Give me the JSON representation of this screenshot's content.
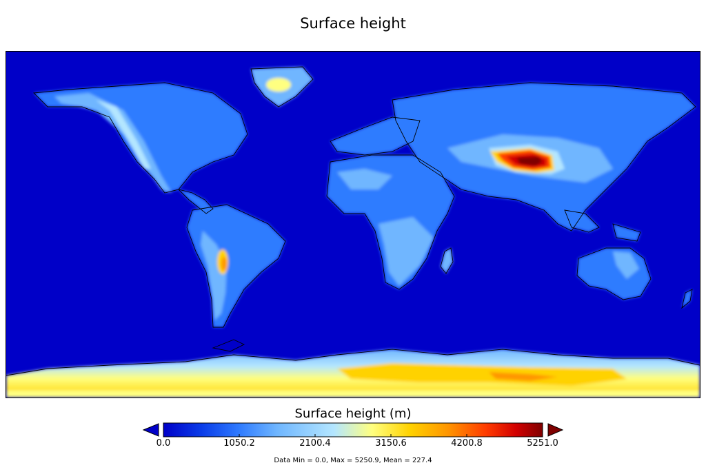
{
  "title": "Surface height",
  "colorbar": {
    "label": "Surface height (m)",
    "ticks": [
      "0.0",
      "1050.2",
      "2100.4",
      "3150.6",
      "4200.8",
      "5251.0"
    ],
    "min": 0.0,
    "max": 5251.0,
    "under_color": "#0000c8",
    "over_color": "#7f0000",
    "colors": [
      "#0000c8",
      "#0a3ce8",
      "#2f7bff",
      "#6fb6ff",
      "#b4e6ff",
      "#ffff80",
      "#ffd200",
      "#ff9600",
      "#ff3c00",
      "#d20000",
      "#7f0000"
    ]
  },
  "stats": "Data Min = 0.0, Max = 5250.9, Mean = 227.4",
  "colors": {
    "ocean": "#0000c8",
    "coastline": "#000000"
  }
}
